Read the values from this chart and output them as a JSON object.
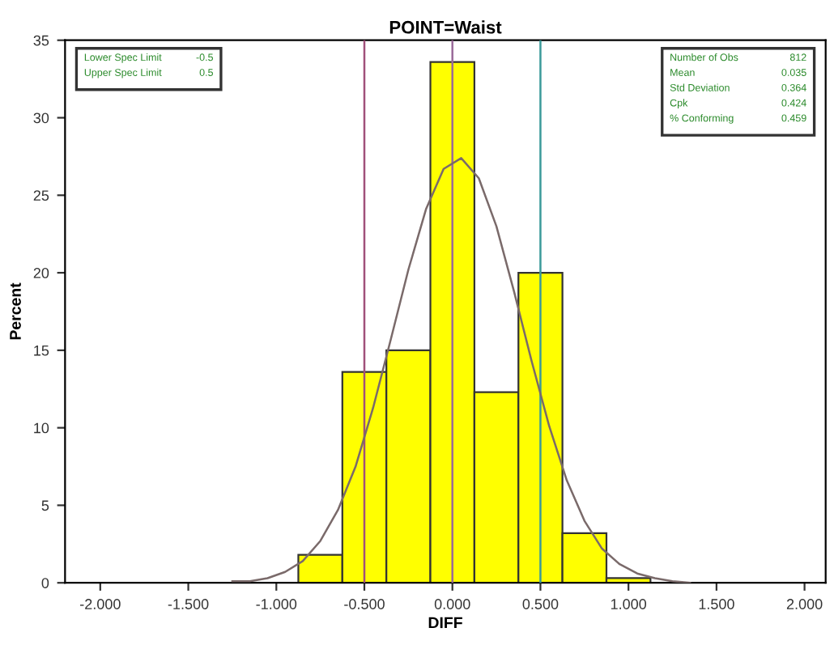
{
  "chart_data": {
    "type": "histogram",
    "title": "POINT=Waist",
    "xlabel": "DIFF",
    "ylabel": "Percent",
    "series": [
      {
        "color": "#ffff00",
        "bins": [
          -0.875,
          -0.625,
          -0.375,
          -0.125,
          0.125,
          0.375,
          0.625,
          0.875,
          1.125
        ],
        "values": [
          1.8,
          13.6,
          15.0,
          33.6,
          12.3,
          20.0,
          3.2,
          0.3
        ]
      },
      {
        "type": "line",
        "color": "#7a6a6a",
        "x": [
          -1.25,
          -1.15,
          -1.05,
          -0.95,
          -0.85,
          -0.75,
          -0.65,
          -0.55,
          -0.45,
          -0.35,
          -0.25,
          -0.15,
          -0.05,
          0.05,
          0.15,
          0.25,
          0.35,
          0.45,
          0.55,
          0.65,
          0.75,
          0.85,
          0.95,
          1.05,
          1.15,
          1.25,
          1.35
        ],
        "values": [
          0.1,
          0.1,
          0.3,
          0.7,
          1.4,
          2.7,
          4.7,
          7.5,
          11.3,
          15.7,
          20.2,
          24.1,
          26.7,
          27.4,
          26.1,
          23.0,
          18.8,
          14.3,
          10.1,
          6.6,
          4.0,
          2.2,
          1.2,
          0.6,
          0.3,
          0.1,
          0.0
        ]
      }
    ],
    "xlim": [
      -2.2,
      2.12
    ],
    "ylim": [
      0,
      35
    ],
    "xticks": [
      {
        "value": -2,
        "label": "-2.000"
      },
      {
        "value": -1.5,
        "label": "-1.500"
      },
      {
        "value": -1,
        "label": "-1.000"
      },
      {
        "value": -0.5,
        "label": "-0.500"
      },
      {
        "value": 0,
        "label": "0.000"
      },
      {
        "value": 0.5,
        "label": "0.500"
      },
      {
        "value": 1,
        "label": "1.000"
      },
      {
        "value": 1.5,
        "label": "1.500"
      },
      {
        "value": 2,
        "label": "2.000"
      }
    ],
    "yticks": [
      0,
      5,
      10,
      15,
      20,
      25,
      30,
      35
    ],
    "ref_lines": [
      {
        "axis": "x",
        "value": -0.5,
        "color": "#a0507a"
      },
      {
        "axis": "x",
        "value": 0,
        "color": "#9a6a9a"
      },
      {
        "axis": "x",
        "value": 0.5,
        "color": "#3a9a9a"
      }
    ],
    "annotations": [
      [
        "Lower Spec Limit",
        "-0.5"
      ],
      [
        "Upper Spec Limit",
        "0.5"
      ],
      [
        "Number of Obs",
        "812"
      ],
      [
        "Mean",
        "0.035"
      ],
      [
        "Std Deviation",
        "0.364"
      ],
      [
        "Cpk",
        "0.424"
      ],
      [
        "% Conforming",
        "0.459"
      ]
    ],
    "grid": false,
    "legend": false
  }
}
